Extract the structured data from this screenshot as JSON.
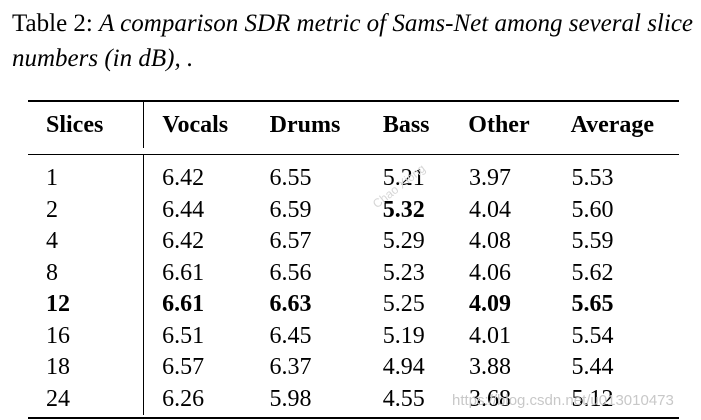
{
  "caption": {
    "label": "Table 2:",
    "text": "A comparison SDR metric of Sams-Net among several slice numbers (in dB), ."
  },
  "table": {
    "headers": [
      "Slices",
      "Vocals",
      "Drums",
      "Bass",
      "Other",
      "Average"
    ],
    "rows": [
      {
        "cells": [
          "1",
          "6.42",
          "6.55",
          "5.21",
          "3.97",
          "5.53"
        ],
        "bold": []
      },
      {
        "cells": [
          "2",
          "6.44",
          "6.59",
          "5.32",
          "4.04",
          "5.60"
        ],
        "bold": [
          3
        ]
      },
      {
        "cells": [
          "4",
          "6.42",
          "6.57",
          "5.29",
          "4.08",
          "5.59"
        ],
        "bold": []
      },
      {
        "cells": [
          "8",
          "6.61",
          "6.56",
          "5.23",
          "4.06",
          "5.62"
        ],
        "bold": []
      },
      {
        "cells": [
          "12",
          "6.61",
          "6.63",
          "5.25",
          "4.09",
          "5.65"
        ],
        "bold": [
          0,
          1,
          2,
          4,
          5
        ]
      },
      {
        "cells": [
          "16",
          "6.51",
          "6.45",
          "5.19",
          "4.01",
          "5.54"
        ],
        "bold": []
      },
      {
        "cells": [
          "18",
          "6.57",
          "6.37",
          "4.94",
          "3.88",
          "5.44"
        ],
        "bold": []
      },
      {
        "cells": [
          "24",
          "6.26",
          "5.98",
          "4.55",
          "3.68",
          "5.12"
        ],
        "bold": []
      }
    ]
  },
  "watermarks": {
    "footer": "https://blog.csdn.net/u013010473",
    "diagonal": "Chao Xiong"
  }
}
